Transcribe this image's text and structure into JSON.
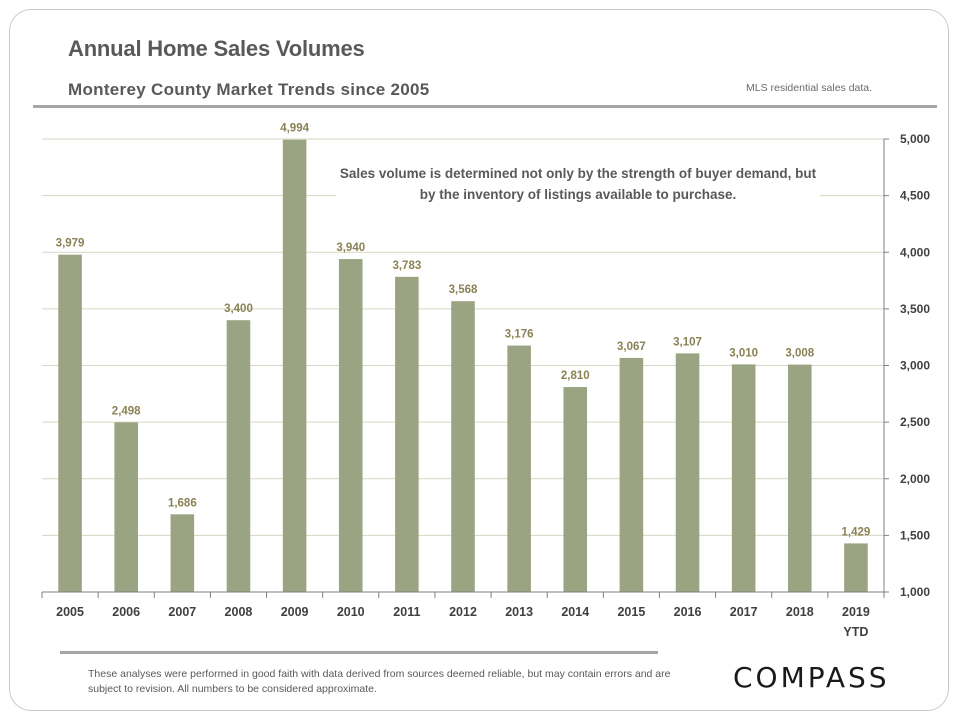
{
  "header": {
    "title": "Annual Home Sales Volumes",
    "subtitle": "Monterey County Market Trends since 2005",
    "source": "MLS residential sales data."
  },
  "annotation": "Sales volume is determined not only by the strength of buyer demand, but by the inventory of listings available to purchase.",
  "footer": {
    "disclaimer": "These analyses were performed in good faith with data derived from sources deemed reliable, but may contain errors and are subject to revision. All numbers to be considered approximate.",
    "logo": "COMPASS"
  },
  "colors": {
    "bar": "#9ba482",
    "bar_label": "#8a8254",
    "gridline": "#d6d6c2",
    "axis": "#808080"
  },
  "chart_data": {
    "type": "bar",
    "title": "Annual Home Sales Volumes",
    "subtitle": "Monterey County Market Trends since 2005",
    "xlabel": "",
    "ylabel": "",
    "categories": [
      "2005",
      "2006",
      "2007",
      "2008",
      "2009",
      "2010",
      "2011",
      "2012",
      "2013",
      "2014",
      "2015",
      "2016",
      "2017",
      "2018",
      "2019 YTD"
    ],
    "category_lines": [
      [
        "2005"
      ],
      [
        "2006"
      ],
      [
        "2007"
      ],
      [
        "2008"
      ],
      [
        "2009"
      ],
      [
        "2010"
      ],
      [
        "2011"
      ],
      [
        "2012"
      ],
      [
        "2013"
      ],
      [
        "2014"
      ],
      [
        "2015"
      ],
      [
        "2016"
      ],
      [
        "2017"
      ],
      [
        "2018"
      ],
      [
        "2019",
        "YTD"
      ]
    ],
    "values": [
      3979,
      2498,
      1686,
      3400,
      4994,
      3940,
      3783,
      3568,
      3176,
      2810,
      3067,
      3107,
      3010,
      3008,
      1429
    ],
    "value_labels": [
      "3,979",
      "2,498",
      "1,686",
      "3,400",
      "4,994",
      "3,940",
      "3,783",
      "3,568",
      "3,176",
      "2,810",
      "3,067",
      "3,107",
      "3,010",
      "3,008",
      "1,429"
    ],
    "ylim": [
      1000,
      5000
    ],
    "yticks": [
      1000,
      1500,
      2000,
      2500,
      3000,
      3500,
      4000,
      4500,
      5000
    ],
    "ytick_labels": [
      "1,000",
      "1,500",
      "2,000",
      "2,500",
      "3,000",
      "3,500",
      "4,000",
      "4,500",
      "5,000"
    ],
    "y_axis_side": "right",
    "grid": true,
    "legend": "none"
  }
}
